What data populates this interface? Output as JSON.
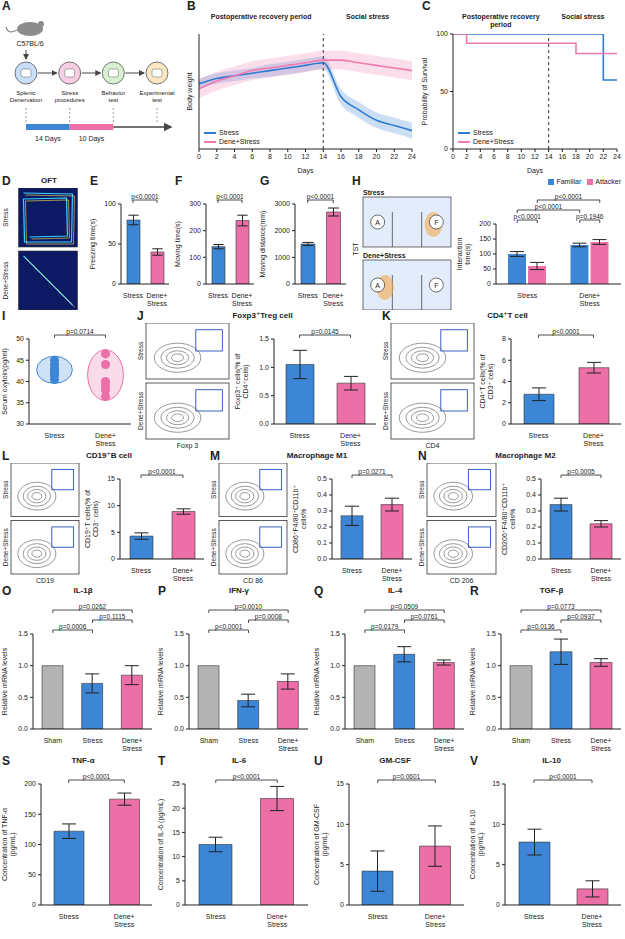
{
  "chart_data": [
    {
      "panel": "A",
      "type": "diagram",
      "strain": "C57BL/6",
      "steps": [
        "Splenic Denervation",
        "Stress procedures",
        "Behavior test",
        "Experimental test"
      ],
      "durations": [
        "14 Days",
        "10 Days"
      ]
    },
    {
      "panel": "B",
      "type": "line",
      "xlabel": "Days",
      "ylabel": "Body weight",
      "x": [
        0,
        2,
        4,
        6,
        8,
        10,
        12,
        14,
        16,
        18,
        20,
        22,
        24
      ],
      "xlim": [
        0,
        24
      ],
      "xticks": [
        0,
        2,
        4,
        6,
        8,
        10,
        12,
        14,
        16,
        18,
        20,
        22,
        24
      ],
      "ylim": [
        8,
        30
      ],
      "tick_labels": "x",
      "phase_boundary": 14,
      "phases": [
        "Postoperative recovery period",
        "Social stress"
      ],
      "legend": "lower left",
      "series": [
        {
          "name": "Stress",
          "color": "#2f7bd1",
          "values": [
            20.5,
            21.5,
            22,
            22.5,
            23,
            23.5,
            24,
            24.5,
            18,
            15.5,
            13.5,
            12.5,
            11.5
          ],
          "sd": [
            1,
            1,
            1,
            1,
            1.2,
            1.2,
            1.2,
            1.2,
            1.5,
            1.5,
            1.5,
            1.5,
            1.5
          ]
        },
        {
          "name": "Dene+Stress",
          "color": "#f07ab0",
          "values": [
            19.5,
            21,
            22,
            23,
            23.5,
            24,
            24.5,
            25,
            25,
            24.5,
            24,
            23.5,
            23
          ],
          "sd": [
            1.8,
            1.8,
            1.8,
            1.8,
            1.8,
            1.8,
            1.8,
            1.8,
            1.8,
            1.8,
            1.8,
            1.8,
            1.8
          ]
        }
      ]
    },
    {
      "panel": "C",
      "type": "line",
      "line_style": "step",
      "xlabel": "Days",
      "ylabel": "Probability of Survival",
      "x": [
        0,
        2,
        4,
        6,
        8,
        10,
        12,
        14,
        16,
        18,
        20,
        22,
        24
      ],
      "xlim": [
        0,
        24
      ],
      "xticks": [
        0,
        2,
        4,
        6,
        8,
        10,
        12,
        14,
        16,
        18,
        20,
        22,
        24
      ],
      "ylim": [
        0,
        100
      ],
      "yticks": [
        0,
        50,
        100
      ],
      "phase_boundary": 14,
      "phases": [
        "Postoperative recovery period",
        "Social stress"
      ],
      "legend": "lower left",
      "series": [
        {
          "name": "Stress",
          "color": "#2f7bd1",
          "values": [
            100,
            100,
            100,
            100,
            100,
            100,
            100,
            100,
            100,
            100,
            100,
            60,
            60
          ]
        },
        {
          "name": "Dene+Stress",
          "color": "#f07ab0",
          "values": [
            100,
            92,
            92,
            92,
            92,
            92,
            92,
            92,
            92,
            83,
            83,
            83,
            83
          ]
        }
      ]
    },
    {
      "panel": "D",
      "type": "image",
      "title": "OFT",
      "categories": [
        "Stress",
        "Dene+Stress"
      ]
    },
    {
      "panel": "E",
      "type": "bar",
      "ylabel": "Freezing time(s)",
      "categories": [
        "Stress",
        "Dene+Stress"
      ],
      "values": [
        80,
        40
      ],
      "sd": [
        6,
        4
      ],
      "colors": [
        "#3d86d6",
        "#ec6fa8"
      ],
      "ylim": [
        0,
        100
      ],
      "yticks": [
        0,
        50,
        100
      ],
      "annotations": [
        {
          "between": [
            0,
            1
          ],
          "text": "p<0.0001"
        }
      ]
    },
    {
      "panel": "F",
      "type": "bar",
      "ylabel": "Moving time(s)",
      "categories": [
        "Stress",
        "Dene+Stress"
      ],
      "values": [
        140,
        238
      ],
      "sd": [
        8,
        20
      ],
      "colors": [
        "#3d86d6",
        "#ec6fa8"
      ],
      "ylim": [
        0,
        300
      ],
      "yticks": [
        0,
        100,
        200,
        300
      ],
      "annotations": [
        {
          "between": [
            0,
            1
          ],
          "text": "p<0.0001"
        }
      ]
    },
    {
      "panel": "G",
      "type": "bar",
      "ylabel": "Moving distance(mm)",
      "categories": [
        "Stress",
        "Dene+Stress"
      ],
      "values": [
        1500,
        2700
      ],
      "sd": [
        60,
        150
      ],
      "colors": [
        "#3d86d6",
        "#ec6fa8"
      ],
      "ylim": [
        0,
        3000
      ],
      "yticks": [
        0,
        1000,
        2000,
        3000
      ],
      "annotations": [
        {
          "between": [
            0,
            1
          ],
          "text": "p<0.0001"
        }
      ]
    },
    {
      "panel": "H",
      "type": "bar",
      "image": {
        "title": "TST",
        "marks": [
          "A",
          "F"
        ]
      },
      "ylabel": "Interaction time(s)",
      "categories": [
        "Stress",
        "Dene+Stress"
      ],
      "legend": "upper right",
      "series": [
        {
          "name": "Familiar",
          "color": "#3d86d6",
          "values": [
            100,
            130
          ],
          "sd": [
            8,
            6
          ]
        },
        {
          "name": "Attacker",
          "color": "#ec6fa8",
          "values": [
            60,
            140
          ],
          "sd": [
            12,
            8
          ]
        }
      ],
      "ylim": [
        0,
        200
      ],
      "yticks": [
        0,
        50,
        100,
        150,
        200
      ],
      "annotations": [
        {
          "between": [
            [
              0,
              0
            ],
            [
              0,
              1
            ]
          ],
          "text": "p<0.0001"
        },
        {
          "between": [
            [
              1,
              0
            ],
            [
              1,
              1
            ]
          ],
          "text": "p=0.1946"
        },
        {
          "between": [
            [
              0,
              0
            ],
            [
              1,
              0
            ]
          ],
          "text": "p<0.0001"
        },
        {
          "between": [
            [
              0,
              1
            ],
            [
              1,
              1
            ]
          ],
          "text": "p<0.0001"
        }
      ]
    },
    {
      "panel": "I",
      "type": "violin",
      "ylabel": "Serum oxytoin(pg/ml)",
      "categories": [
        "Stress",
        "Dene+Stress"
      ],
      "points": [
        [
          40.5,
          41.5,
          42,
          42.5,
          43,
          44,
          45
        ],
        [
          36.5,
          38,
          39,
          39.5,
          40,
          44,
          46.5
        ]
      ],
      "colors": [
        "#3d86d6",
        "#ec6fa8"
      ],
      "ylim": [
        30,
        50
      ],
      "yticks": [
        30,
        35,
        40,
        45,
        50
      ],
      "annotations": [
        {
          "between": [
            0,
            1
          ],
          "text": "p=0.0714"
        }
      ]
    },
    {
      "panel": "J",
      "type": "bar",
      "title": "Foxp3⁺Treg cell",
      "flow": {
        "xlabel": "Foxp 3"
      },
      "ylabel": "Foxp3⁺ cells(% of CD4⁺cells)",
      "categories": [
        "Stress",
        "Dene+Stress"
      ],
      "values": [
        1.05,
        0.72
      ],
      "sd": [
        0.25,
        0.12
      ],
      "colors": [
        "#3d86d6",
        "#ec6fa8"
      ],
      "ylim": [
        0,
        1.5
      ],
      "yticks": [
        {
          "value": 0,
          "label": "0.0"
        },
        0.5,
        {
          "value": 1,
          "label": "1.0"
        },
        1.5
      ],
      "annotations": [
        {
          "between": [
            0,
            1
          ],
          "text": "p=0.0145"
        }
      ]
    },
    {
      "panel": "K",
      "type": "bar",
      "title": "CD4⁺T cell",
      "flow": {
        "xlabel": "CD4"
      },
      "ylabel": "CD4⁺T cells(% of CD3⁺ cells)",
      "categories": [
        "Stress",
        "Dene+Stress"
      ],
      "values": [
        2.8,
        5.3
      ],
      "sd": [
        0.6,
        0.5
      ],
      "colors": [
        "#3d86d6",
        "#ec6fa8"
      ],
      "ylim": [
        0,
        8
      ],
      "yticks": [
        0,
        2,
        4,
        6,
        8
      ],
      "annotations": [
        {
          "between": [
            0,
            1
          ],
          "text": "p<0.0001"
        }
      ]
    },
    {
      "panel": "L",
      "type": "bar",
      "title": "CD19⁺B cell",
      "flow": {
        "xlabel": "CD19"
      },
      "ylabel": "CD19⁺T cells(% of CD3⁻ cells)",
      "categories": [
        "Stress",
        "Dene+Stress"
      ],
      "values": [
        4.3,
        8.9
      ],
      "sd": [
        0.6,
        0.5
      ],
      "colors": [
        "#3d86d6",
        "#ec6fa8"
      ],
      "ylim": [
        0,
        15
      ],
      "yticks": [
        0,
        5,
        10,
        15
      ],
      "annotations": [
        {
          "between": [
            0,
            1
          ],
          "text": "p<0.0001"
        }
      ]
    },
    {
      "panel": "M",
      "type": "bar",
      "title": "Macrophage M1",
      "flow": {
        "xlabel": "CD 86"
      },
      "ylabel": "CD86⁺F4/80⁺CD11b⁺ cells%",
      "categories": [
        "Stress",
        "Dene+Stress"
      ],
      "values": [
        0.27,
        0.34
      ],
      "sd": [
        0.06,
        0.04
      ],
      "colors": [
        "#3d86d6",
        "#ec6fa8"
      ],
      "ylim": [
        0,
        0.5
      ],
      "yticks": [
        {
          "value": 0,
          "label": "0.0"
        },
        0.1,
        0.2,
        0.3,
        0.4,
        0.5
      ],
      "annotations": [
        {
          "between": [
            0,
            1
          ],
          "text": "p=0.0271"
        }
      ]
    },
    {
      "panel": "N",
      "type": "bar",
      "title": "Macrophage M2",
      "flow": {
        "xlabel": "CD 206"
      },
      "ylabel": "CD206⁺F4/80⁺CD11b⁺ cells%",
      "categories": [
        "Stress",
        "Dene+Stress"
      ],
      "values": [
        0.34,
        0.22
      ],
      "sd": [
        0.04,
        0.02
      ],
      "colors": [
        "#3d86d6",
        "#ec6fa8"
      ],
      "ylim": [
        0,
        0.5
      ],
      "yticks": [
        {
          "value": 0,
          "label": "0.0"
        },
        0.1,
        0.2,
        0.3,
        0.4,
        0.5
      ],
      "annotations": [
        {
          "between": [
            0,
            1
          ],
          "text": "p=0.0005"
        }
      ]
    },
    {
      "panel": "O",
      "type": "bar",
      "title": "IL-1β",
      "ylabel": "Relative mRNA levels",
      "categories": [
        "Sham",
        "Stress",
        "Dene+Stress"
      ],
      "values": [
        1,
        0.72,
        0.85
      ],
      "sd": [
        0,
        0.15,
        0.15
      ],
      "colors": [
        "#b3b3b3",
        "#3d86d6",
        "#ec6fa8"
      ],
      "ylim": [
        0,
        1.5
      ],
      "yticks": [
        {
          "value": 0,
          "label": "0.0"
        },
        0.5,
        {
          "value": 1,
          "label": "1.0"
        },
        1.5
      ],
      "annotations": [
        {
          "between": [
            0,
            1
          ],
          "text": "p=0.0006"
        },
        {
          "between": [
            1,
            2
          ],
          "text": "p=0.1115"
        },
        {
          "between": [
            0,
            2
          ],
          "text": "p=0.0262"
        }
      ]
    },
    {
      "panel": "P",
      "type": "bar",
      "title": "IFN-γ",
      "ylabel": "Relative mRNA levels",
      "categories": [
        "Sham",
        "Stress",
        "Dene+Stress"
      ],
      "values": [
        1,
        0.45,
        0.75
      ],
      "sd": [
        0,
        0.1,
        0.12
      ],
      "colors": [
        "#b3b3b3",
        "#3d86d6",
        "#ec6fa8"
      ],
      "ylim": [
        0,
        1.5
      ],
      "yticks": [
        {
          "value": 0,
          "label": "0.0"
        },
        0.5,
        {
          "value": 1,
          "label": "1.0"
        },
        1.5
      ],
      "annotations": [
        {
          "between": [
            0,
            1
          ],
          "text": "p<0.0001"
        },
        {
          "between": [
            1,
            2
          ],
          "text": "p=0.0008"
        },
        {
          "between": [
            0,
            2
          ],
          "text": "p=0.0010"
        }
      ]
    },
    {
      "panel": "Q",
      "type": "bar",
      "title": "IL-4",
      "ylabel": "Relative mRNA levels",
      "categories": [
        "Sham",
        "Stress",
        "Dene+Stress"
      ],
      "values": [
        1,
        1.18,
        1.05
      ],
      "sd": [
        0,
        0.12,
        0.04
      ],
      "colors": [
        "#b3b3b3",
        "#3d86d6",
        "#ec6fa8"
      ],
      "ylim": [
        0,
        1.5
      ],
      "yticks": [
        {
          "value": 0,
          "label": "0.0"
        },
        0.5,
        {
          "value": 1,
          "label": "1.0"
        },
        1.5
      ],
      "annotations": [
        {
          "between": [
            0,
            1
          ],
          "text": "p=0.0179"
        },
        {
          "between": [
            1,
            2
          ],
          "text": "p=0.0761"
        },
        {
          "between": [
            0,
            2
          ],
          "text": "p=0.0509"
        }
      ]
    },
    {
      "panel": "R",
      "type": "bar",
      "title": "TGF-β",
      "ylabel": "Relative mRNA levels",
      "categories": [
        "Sham",
        "Stress",
        "Dene+Stress"
      ],
      "values": [
        1,
        1.22,
        1.05
      ],
      "sd": [
        0,
        0.2,
        0.06
      ],
      "colors": [
        "#b3b3b3",
        "#3d86d6",
        "#ec6fa8"
      ],
      "ylim": [
        0,
        1.5
      ],
      "yticks": [
        {
          "value": 0,
          "label": "0.0"
        },
        0.5,
        {
          "value": 1,
          "label": "1.0"
        },
        1.5
      ],
      "annotations": [
        {
          "between": [
            0,
            1
          ],
          "text": "p=0.0136"
        },
        {
          "between": [
            1,
            2
          ],
          "text": "p=0.0937"
        },
        {
          "between": [
            0,
            2
          ],
          "text": "p=0.0773"
        }
      ]
    },
    {
      "panel": "S",
      "type": "bar",
      "title": "TNF-α",
      "ylabel": "Concentration of TNF-α (pg/mL)",
      "categories": [
        "Stress",
        "Dene+Stress"
      ],
      "values": [
        122,
        175
      ],
      "sd": [
        12,
        10
      ],
      "colors": [
        "#3d86d6",
        "#ec6fa8"
      ],
      "ylim": [
        0,
        200
      ],
      "yticks": [
        0,
        50,
        100,
        150,
        200
      ],
      "annotations": [
        {
          "between": [
            0,
            1
          ],
          "text": "p<0.0001"
        }
      ]
    },
    {
      "panel": "T",
      "type": "bar",
      "title": "IL-6",
      "ylabel": "Concentration of IL-6 (pg/mL)",
      "categories": [
        "Stress",
        "Dene+Stress"
      ],
      "values": [
        12.5,
        22
      ],
      "sd": [
        1.5,
        2.5
      ],
      "colors": [
        "#3d86d6",
        "#ec6fa8"
      ],
      "ylim": [
        0,
        25
      ],
      "yticks": [
        0,
        5,
        10,
        15,
        20,
        25
      ],
      "annotations": [
        {
          "between": [
            0,
            1
          ],
          "text": "p<0.0001"
        }
      ]
    },
    {
      "panel": "U",
      "type": "bar",
      "title": "GM-CSF",
      "ylabel": "Concentration of GM-CSF (pg/mL)",
      "categories": [
        "Stress",
        "Dene+Stress"
      ],
      "values": [
        4.2,
        7.3
      ],
      "sd": [
        2.5,
        2.5
      ],
      "colors": [
        "#3d86d6",
        "#ec6fa8"
      ],
      "ylim": [
        0,
        15
      ],
      "yticks": [
        0,
        5,
        10,
        15
      ],
      "annotations": [
        {
          "between": [
            0,
            1
          ],
          "text": "p=0.0601"
        }
      ]
    },
    {
      "panel": "V",
      "type": "bar",
      "title": "IL-10",
      "ylabel": "Concentration of IL-10 (pg/mL)",
      "categories": [
        "Stress",
        "Dene+Stress"
      ],
      "values": [
        7.8,
        2
      ],
      "sd": [
        1.6,
        1.0
      ],
      "colors": [
        "#3d86d6",
        "#ec6fa8"
      ],
      "ylim": [
        0,
        15
      ],
      "yticks": [
        0,
        5,
        10,
        15
      ],
      "annotations": [
        {
          "between": [
            0,
            1
          ],
          "text": "p<0.0001"
        }
      ]
    }
  ]
}
